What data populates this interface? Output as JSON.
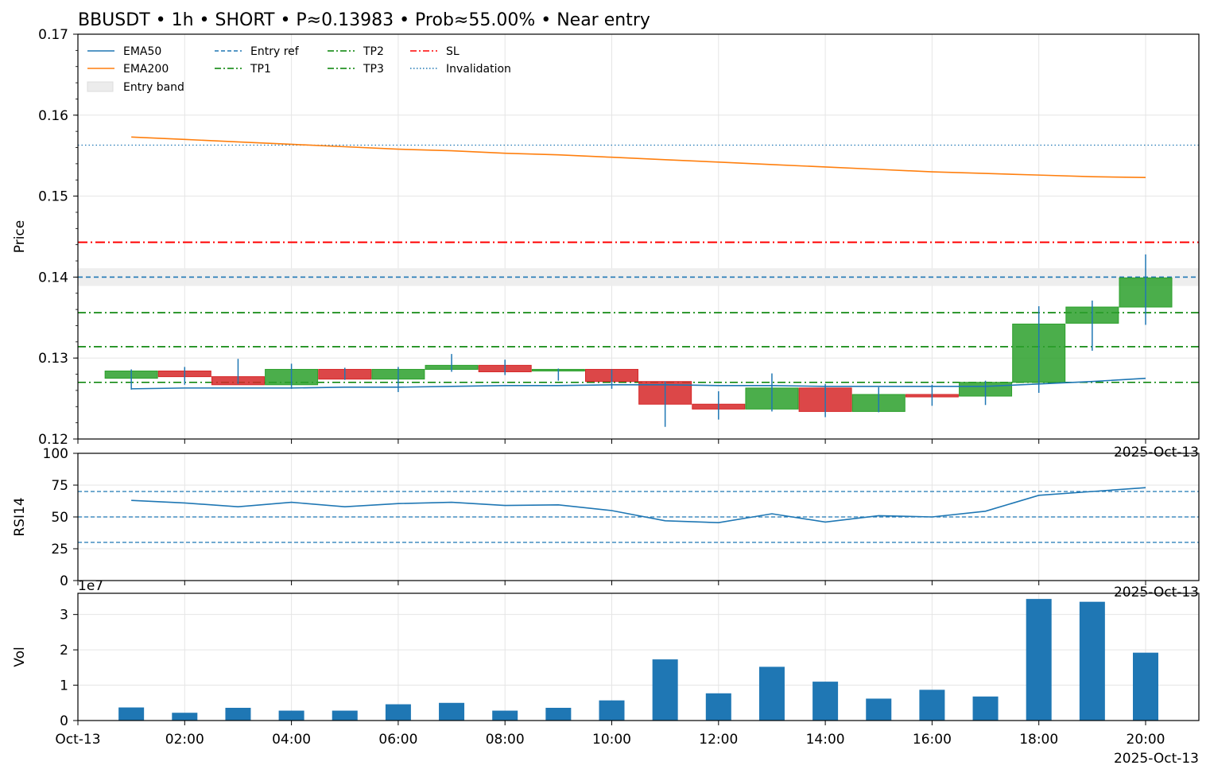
{
  "chart_data": {
    "title": "BBUSDT • 1h • SHORT • P≈0.13983 • Prob≈55.00% • Near entry",
    "type": "candlestick",
    "grid": true,
    "legend": {
      "placement": "top-left",
      "items": [
        {
          "label": "EMA50",
          "style": "solid",
          "color": "#1f77b4"
        },
        {
          "label": "EMA200",
          "style": "solid",
          "color": "#ff7f0e"
        },
        {
          "label": "Entry band",
          "style": "band",
          "color": "#ececec"
        },
        {
          "label": "Entry ref",
          "style": "dashed",
          "color": "#1f77b4"
        },
        {
          "label": "TP1",
          "style": "dashdot",
          "color": "#008000"
        },
        {
          "label": "TP2",
          "style": "dashdot",
          "color": "#008000"
        },
        {
          "label": "TP3",
          "style": "dashdot",
          "color": "#008000"
        },
        {
          "label": "SL",
          "style": "dashdot",
          "color": "#ff0000"
        },
        {
          "label": "Invalidation",
          "style": "dotted",
          "color": "#1f77b4"
        }
      ]
    },
    "x_ticks": [
      "Oct-13",
      "02:00",
      "04:00",
      "06:00",
      "08:00",
      "10:00",
      "12:00",
      "14:00",
      "16:00",
      "18:00",
      "20:00"
    ],
    "x_offset_label": "2025-Oct-13",
    "hours": [
      1,
      2,
      3,
      4,
      5,
      6,
      7,
      8,
      9,
      10,
      11,
      12,
      13,
      14,
      15,
      16,
      17,
      18,
      19,
      20
    ],
    "price_panel": {
      "ylabel": "Price",
      "ylim": [
        0.12,
        0.17
      ],
      "yticks": [
        "0.12",
        "0.13",
        "0.14",
        "0.15",
        "0.16",
        "0.17"
      ],
      "candles": [
        {
          "o": 0.1275,
          "h": 0.1286,
          "l": 0.1261,
          "c": 0.1284
        },
        {
          "o": 0.1284,
          "h": 0.1289,
          "l": 0.1267,
          "c": 0.1277
        },
        {
          "o": 0.1277,
          "h": 0.1299,
          "l": 0.1268,
          "c": 0.1267
        },
        {
          "o": 0.1267,
          "h": 0.1293,
          "l": 0.1262,
          "c": 0.1286
        },
        {
          "o": 0.1286,
          "h": 0.1288,
          "l": 0.1273,
          "c": 0.1274
        },
        {
          "o": 0.1274,
          "h": 0.1289,
          "l": 0.1258,
          "c": 0.1286
        },
        {
          "o": 0.1286,
          "h": 0.1305,
          "l": 0.1283,
          "c": 0.1291
        },
        {
          "o": 0.1291,
          "h": 0.1298,
          "l": 0.1279,
          "c": 0.1283
        },
        {
          "o": 0.1284,
          "h": 0.1287,
          "l": 0.1272,
          "c": 0.1286
        },
        {
          "o": 0.1286,
          "h": 0.1286,
          "l": 0.1262,
          "c": 0.1271
        },
        {
          "o": 0.1271,
          "h": 0.1271,
          "l": 0.1215,
          "c": 0.1243
        },
        {
          "o": 0.1243,
          "h": 0.1259,
          "l": 0.1224,
          "c": 0.1237
        },
        {
          "o": 0.1237,
          "h": 0.1281,
          "l": 0.1234,
          "c": 0.1263
        },
        {
          "o": 0.1263,
          "h": 0.1268,
          "l": 0.1227,
          "c": 0.1234
        },
        {
          "o": 0.1234,
          "h": 0.1264,
          "l": 0.1233,
          "c": 0.1255
        },
        {
          "o": 0.1255,
          "h": 0.1267,
          "l": 0.1241,
          "c": 0.1252
        },
        {
          "o": 0.1253,
          "h": 0.1272,
          "l": 0.1242,
          "c": 0.127
        },
        {
          "o": 0.127,
          "h": 0.1364,
          "l": 0.1257,
          "c": 0.1342
        },
        {
          "o": 0.1343,
          "h": 0.1371,
          "l": 0.1309,
          "c": 0.1363
        },
        {
          "o": 0.1363,
          "h": 0.1428,
          "l": 0.1341,
          "c": 0.1399
        }
      ],
      "ema50": [
        0.1262,
        0.1263,
        0.1263,
        0.1263,
        0.1264,
        0.1264,
        0.1265,
        0.1266,
        0.1266,
        0.1267,
        0.1267,
        0.1266,
        0.1266,
        0.1265,
        0.1265,
        0.1265,
        0.1265,
        0.1268,
        0.1271,
        0.1275
      ],
      "ema200": [
        0.1573,
        0.157,
        0.1567,
        0.1564,
        0.1561,
        0.1558,
        0.1556,
        0.1553,
        0.1551,
        0.1548,
        0.1545,
        0.1542,
        0.1539,
        0.1536,
        0.1533,
        0.153,
        0.1528,
        0.1526,
        0.1524,
        0.1523
      ],
      "levels": {
        "entry_ref": 0.14,
        "entry_band": [
          0.1389,
          0.1411
        ],
        "tp1": 0.1356,
        "tp2": 0.1314,
        "tp3": 0.127,
        "sl": 0.1443,
        "invalidation": 0.1563
      }
    },
    "rsi_panel": {
      "ylabel": "RSI14",
      "ylim": [
        0,
        100
      ],
      "yticks": [
        "0",
        "25",
        "50",
        "75",
        "100"
      ],
      "reference_lines": [
        30,
        50,
        70
      ],
      "values": [
        63,
        61,
        58,
        61.5,
        58,
        60.5,
        61.5,
        59,
        59.5,
        55,
        47,
        45.5,
        52.5,
        46,
        51,
        50,
        54.5,
        67,
        70,
        73
      ]
    },
    "volume_panel": {
      "ylabel": "Vol",
      "scale_label": "1e7",
      "ylim": [
        0,
        3.6
      ],
      "yticks": [
        "0",
        "1",
        "2",
        "3"
      ],
      "values": [
        0.37,
        0.22,
        0.36,
        0.28,
        0.28,
        0.46,
        0.5,
        0.28,
        0.36,
        0.57,
        1.73,
        0.77,
        1.52,
        1.1,
        0.62,
        0.87,
        0.68,
        3.44,
        3.36,
        1.92
      ]
    },
    "colors": {
      "up": "#2ca02c",
      "down": "#d62728",
      "wick": "#1f77b4",
      "ema50": "#1f77b4",
      "ema200": "#ff7f0e",
      "volume": "#1f77b4",
      "grid": "#e5e5e5"
    }
  }
}
